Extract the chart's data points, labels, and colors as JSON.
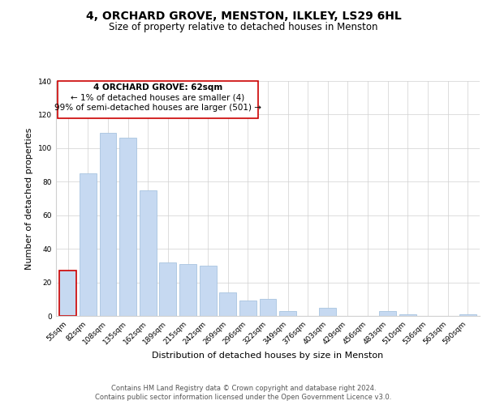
{
  "title": "4, ORCHARD GROVE, MENSTON, ILKLEY, LS29 6HL",
  "subtitle": "Size of property relative to detached houses in Menston",
  "xlabel": "Distribution of detached houses by size in Menston",
  "ylabel": "Number of detached properties",
  "bar_labels": [
    "55sqm",
    "82sqm",
    "108sqm",
    "135sqm",
    "162sqm",
    "189sqm",
    "215sqm",
    "242sqm",
    "269sqm",
    "296sqm",
    "322sqm",
    "349sqm",
    "376sqm",
    "403sqm",
    "429sqm",
    "456sqm",
    "483sqm",
    "510sqm",
    "536sqm",
    "563sqm",
    "590sqm"
  ],
  "bar_values": [
    27,
    85,
    109,
    106,
    75,
    32,
    31,
    30,
    14,
    9,
    10,
    3,
    0,
    5,
    0,
    0,
    3,
    1,
    0,
    0,
    1
  ],
  "bar_color": "#c6d9f1",
  "highlight_bar_index": 0,
  "highlight_edge_color": "#cc0000",
  "normal_edge_color": "#a8c4e0",
  "ylim": [
    0,
    140
  ],
  "yticks": [
    0,
    20,
    40,
    60,
    80,
    100,
    120,
    140
  ],
  "annotation_title": "4 ORCHARD GROVE: 62sqm",
  "annotation_line1": "← 1% of detached houses are smaller (4)",
  "annotation_line2": "99% of semi-detached houses are larger (501) →",
  "annotation_box_edge": "#cc0000",
  "footer_line1": "Contains HM Land Registry data © Crown copyright and database right 2024.",
  "footer_line2": "Contains public sector information licensed under the Open Government Licence v3.0.",
  "title_fontsize": 10,
  "subtitle_fontsize": 8.5,
  "axis_label_fontsize": 8,
  "tick_fontsize": 6.5,
  "annotation_fontsize": 7.5,
  "footer_fontsize": 6
}
